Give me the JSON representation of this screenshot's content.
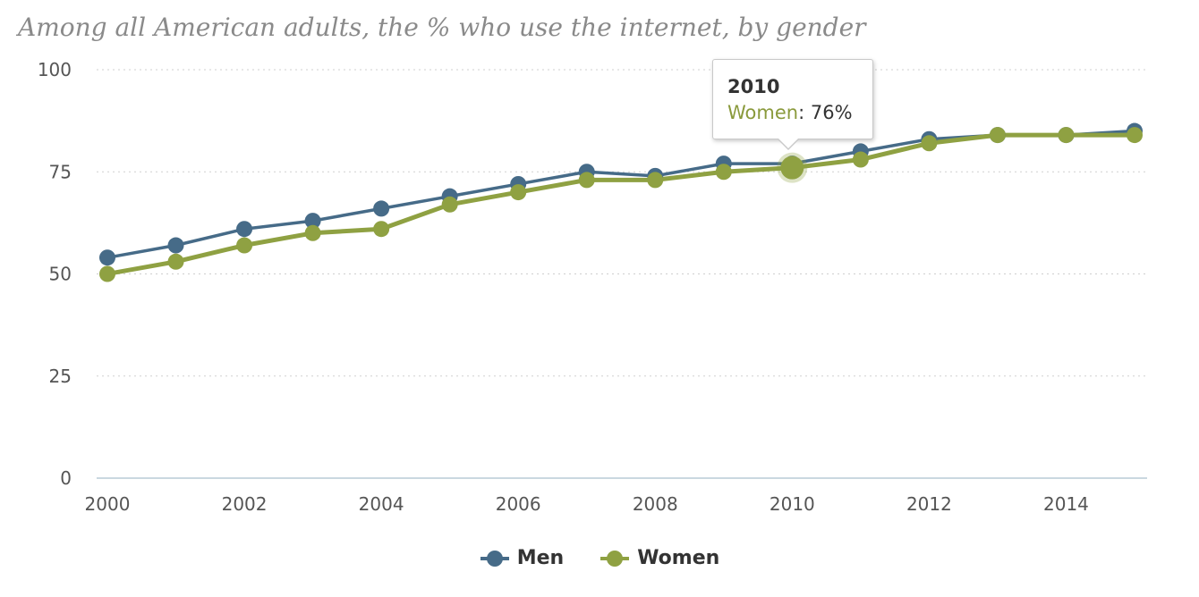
{
  "chart_data": {
    "type": "line",
    "title": "Among all American adults, the % who use the internet, by gender",
    "xlabel": "",
    "ylabel": "",
    "x": [
      2000,
      2001,
      2002,
      2003,
      2004,
      2005,
      2006,
      2007,
      2008,
      2009,
      2010,
      2011,
      2012,
      2013,
      2014,
      2015
    ],
    "x_tick_labels": [
      "2000",
      "2002",
      "2004",
      "2006",
      "2008",
      "2010",
      "2012",
      "2014"
    ],
    "y_tick_labels": [
      "0",
      "25",
      "50",
      "75",
      "100"
    ],
    "ylim": [
      0,
      100
    ],
    "xlim": [
      2000,
      2015
    ],
    "grid": true,
    "legend_position": "bottom-center",
    "series": [
      {
        "name": "Men",
        "color": "#466b88",
        "values": [
          54,
          57,
          61,
          63,
          66,
          69,
          72,
          75,
          74,
          77,
          77,
          80,
          83,
          84,
          84,
          85
        ]
      },
      {
        "name": "Women",
        "color": "#8fa142",
        "values": [
          50,
          53,
          57,
          60,
          61,
          67,
          70,
          73,
          73,
          75,
          76,
          78,
          82,
          84,
          84,
          84
        ]
      }
    ],
    "tooltip": {
      "year": "2010",
      "series": "Women",
      "separator": ":",
      "value": "76%"
    },
    "highlight": {
      "series": "Women",
      "x": 2010
    }
  }
}
